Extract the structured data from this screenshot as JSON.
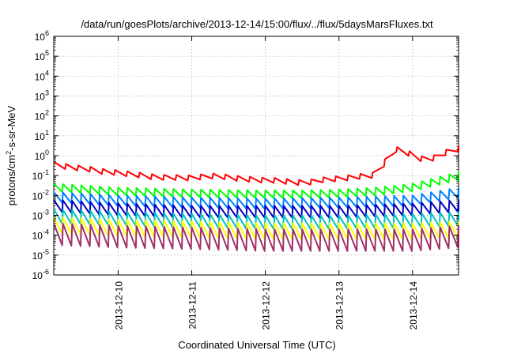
{
  "chart_data": {
    "type": "line",
    "title": "/data/run/goesPlots/archive/2013-12-14/15:00/flux/../flux/5daysMarsFluxes.txt",
    "xlabel": "Coordinated Universal Time (UTC)",
    "ylabel": {
      "before": "protons/cm",
      "sup": "2",
      "after": "-s-sr-MeV"
    },
    "x_start": "2013-12-09 03:00",
    "x_end": "2013-12-14 15:00",
    "x_ticks": [
      "2013-12-10",
      "2013-12-11",
      "2013-12-12",
      "2013-12-13",
      "2013-12-14"
    ],
    "y_scale": "log",
    "ylim": [
      1e-06,
      1000000.0
    ],
    "y_ticks": [
      {
        "base": "10",
        "exp": "-6"
      },
      {
        "base": "10",
        "exp": "-5"
      },
      {
        "base": "10",
        "exp": "-4"
      },
      {
        "base": "10",
        "exp": "-3"
      },
      {
        "base": "10",
        "exp": "-2"
      },
      {
        "base": "10",
        "exp": "-1"
      },
      {
        "base": "10",
        "exp": "0"
      },
      {
        "base": "10",
        "exp": "1"
      },
      {
        "base": "10",
        "exp": "2"
      },
      {
        "base": "10",
        "exp": "3"
      },
      {
        "base": "10",
        "exp": "4"
      },
      {
        "base": "10",
        "exp": "5"
      },
      {
        "base": "10",
        "exp": "6"
      }
    ],
    "grid": true,
    "series": [
      {
        "color": "#ff0000",
        "points": [
          [
            "2013-12-09 03:00",
            0.5
          ],
          [
            "2013-12-09 06:00",
            0.4
          ],
          [
            "2013-12-09 10:00",
            0.33
          ],
          [
            "2013-12-09 14:00",
            0.3
          ],
          [
            "2013-12-09 18:00",
            0.22
          ],
          [
            "2013-12-09 22:00",
            0.2
          ],
          [
            "2013-12-10 02:00",
            0.17
          ],
          [
            "2013-12-10 06:00",
            0.15
          ],
          [
            "2013-12-10 10:00",
            0.12
          ],
          [
            "2013-12-10 14:00",
            0.11
          ],
          [
            "2013-12-10 18:00",
            0.11
          ],
          [
            "2013-12-10 22:00",
            0.1
          ],
          [
            "2013-12-11 02:00",
            0.11
          ],
          [
            "2013-12-11 06:00",
            0.13
          ],
          [
            "2013-12-11 10:00",
            0.12
          ],
          [
            "2013-12-11 14:00",
            0.1
          ],
          [
            "2013-12-11 18:00",
            0.09
          ],
          [
            "2013-12-11 22:00",
            0.08
          ],
          [
            "2013-12-12 02:00",
            0.08
          ],
          [
            "2013-12-12 06:00",
            0.07
          ],
          [
            "2013-12-12 10:00",
            0.06
          ],
          [
            "2013-12-12 14:00",
            0.06
          ],
          [
            "2013-12-12 18:00",
            0.08
          ],
          [
            "2013-12-12 22:00",
            0.09
          ],
          [
            "2013-12-13 02:00",
            0.1
          ],
          [
            "2013-12-13 06:00",
            0.12
          ],
          [
            "2013-12-13 10:00",
            0.13
          ],
          [
            "2013-12-13 12:00",
            0.15
          ],
          [
            "2013-12-13 14:00",
            0.3
          ],
          [
            "2013-12-13 16:00",
            1.5
          ],
          [
            "2013-12-13 18:00",
            3.0
          ],
          [
            "2013-12-13 22:00",
            2.0
          ],
          [
            "2013-12-14 02:00",
            1.0
          ],
          [
            "2013-12-14 05:00",
            0.8
          ],
          [
            "2013-12-14 08:00",
            1.2
          ],
          [
            "2013-12-14 11:00",
            2.0
          ],
          [
            "2013-12-14 15:00",
            3.0
          ]
        ],
        "sawtooth": {
          "period_hours": 4,
          "dip_factor": 0.55
        }
      },
      {
        "color": "#00ff00",
        "points": [
          [
            "2013-12-09 03:00",
            0.04
          ],
          [
            "2013-12-10 00:00",
            0.025
          ],
          [
            "2013-12-11 00:00",
            0.02
          ],
          [
            "2013-12-12 00:00",
            0.018
          ],
          [
            "2013-12-12 12:00",
            0.018
          ],
          [
            "2013-12-13 00:00",
            0.02
          ],
          [
            "2013-12-13 12:00",
            0.025
          ],
          [
            "2013-12-14 00:00",
            0.04
          ],
          [
            "2013-12-14 15:00",
            0.15
          ]
        ],
        "sawtooth": {
          "period_hours": 3,
          "dip_factor": 0.4
        }
      },
      {
        "color": "#0080ff",
        "points": [
          [
            "2013-12-09 03:00",
            0.015
          ],
          [
            "2013-12-10 00:00",
            0.01
          ],
          [
            "2013-12-11 00:00",
            0.008
          ],
          [
            "2013-12-12 00:00",
            0.007
          ],
          [
            "2013-12-13 00:00",
            0.008
          ],
          [
            "2013-12-14 00:00",
            0.01
          ],
          [
            "2013-12-14 15:00",
            0.025
          ]
        ],
        "sawtooth": {
          "period_hours": 3,
          "dip_factor": 0.3
        }
      },
      {
        "color": "#0000c0",
        "points": [
          [
            "2013-12-09 03:00",
            0.006
          ],
          [
            "2013-12-10 00:00",
            0.004
          ],
          [
            "2013-12-11 00:00",
            0.003
          ],
          [
            "2013-12-12 00:00",
            0.003
          ],
          [
            "2013-12-13 00:00",
            0.003
          ],
          [
            "2013-12-14 00:00",
            0.004
          ],
          [
            "2013-12-14 15:00",
            0.006
          ]
        ],
        "sawtooth": {
          "period_hours": 3,
          "dip_factor": 0.25
        }
      },
      {
        "color": "#00c0c0",
        "points": [
          [
            "2013-12-09 03:00",
            0.002
          ],
          [
            "2013-12-10 00:00",
            0.0015
          ],
          [
            "2013-12-11 00:00",
            0.0012
          ],
          [
            "2013-12-12 00:00",
            0.001
          ],
          [
            "2013-12-13 00:00",
            0.001
          ],
          [
            "2013-12-14 00:00",
            0.0012
          ],
          [
            "2013-12-14 15:00",
            0.0015
          ]
        ],
        "sawtooth": {
          "period_hours": 3,
          "dip_factor": 0.2
        }
      },
      {
        "color": "#ffff00",
        "points": [
          [
            "2013-12-09 03:00",
            0.0008
          ],
          [
            "2013-12-10 00:00",
            0.0006
          ],
          [
            "2013-12-11 00:00",
            0.0005
          ],
          [
            "2013-12-12 00:00",
            0.0004
          ],
          [
            "2013-12-13 00:00",
            0.0004
          ],
          [
            "2013-12-14 00:00",
            0.0004
          ],
          [
            "2013-12-14 15:00",
            0.0005
          ]
        ],
        "sawtooth": {
          "period_hours": 3,
          "dip_factor": 0.15
        }
      },
      {
        "color": "#a0306a",
        "points": [
          [
            "2013-12-09 03:00",
            0.0004
          ],
          [
            "2013-12-10 00:00",
            0.0003
          ],
          [
            "2013-12-11 00:00",
            0.00025
          ],
          [
            "2013-12-12 00:00",
            0.0002
          ],
          [
            "2013-12-13 00:00",
            0.0002
          ],
          [
            "2013-12-14 00:00",
            0.0002
          ],
          [
            "2013-12-14 15:00",
            0.0003
          ]
        ],
        "sawtooth": {
          "period_hours": 3,
          "dip_factor": 0.08
        }
      }
    ]
  }
}
